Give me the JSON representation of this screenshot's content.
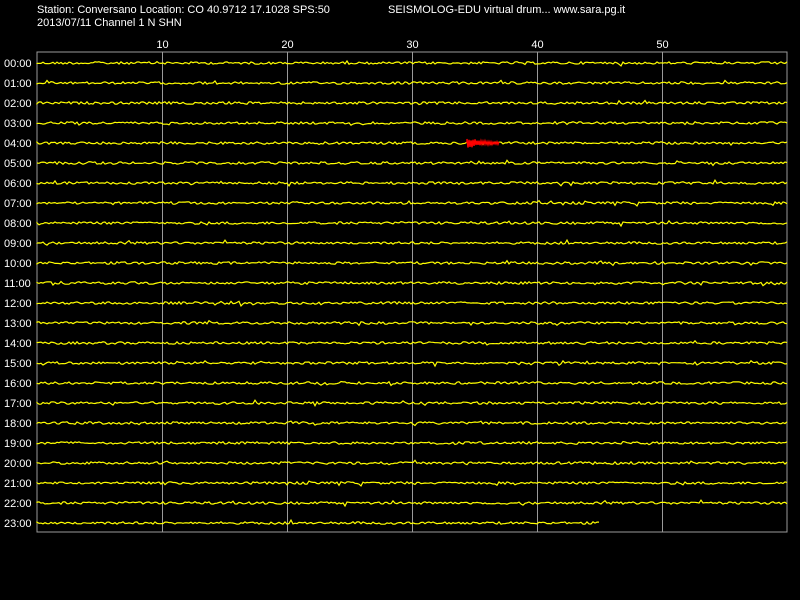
{
  "header": {
    "station_line": "Station: Conversano Location: CO 40.9712 17.1028 SPS:50",
    "title": "SEISMOLOG-EDU virtual drum... www.sara.pg.it",
    "date_line": "2013/07/11  Channel 1 N SHN"
  },
  "chart_data": {
    "type": "line",
    "xlabel": "",
    "ylabel": "",
    "xlim": [
      0,
      60
    ],
    "x_ticks": [
      10,
      20,
      30,
      40,
      50
    ],
    "grid": true,
    "rows": [
      "00:00",
      "01:00",
      "02:00",
      "03:00",
      "04:00",
      "05:00",
      "06:00",
      "07:00",
      "08:00",
      "09:00",
      "10:00",
      "11:00",
      "12:00",
      "13:00",
      "14:00",
      "15:00",
      "16:00",
      "17:00",
      "18:00",
      "19:00",
      "20:00",
      "21:00",
      "22:00",
      "23:00"
    ],
    "trace_end_minute": [
      60,
      60,
      60,
      60,
      60,
      60,
      60,
      60,
      60,
      60,
      60,
      60,
      60,
      60,
      60,
      60,
      60,
      60,
      60,
      60,
      60,
      60,
      60,
      45
    ],
    "event": {
      "row": "04:00",
      "start_minute": 34.4,
      "end_minute": 37.0
    },
    "colors": {
      "background": "#000000",
      "trace": "#ffff00",
      "event": "#ff0000",
      "grid": "#9a9a9a",
      "text": "#ffffff"
    }
  }
}
